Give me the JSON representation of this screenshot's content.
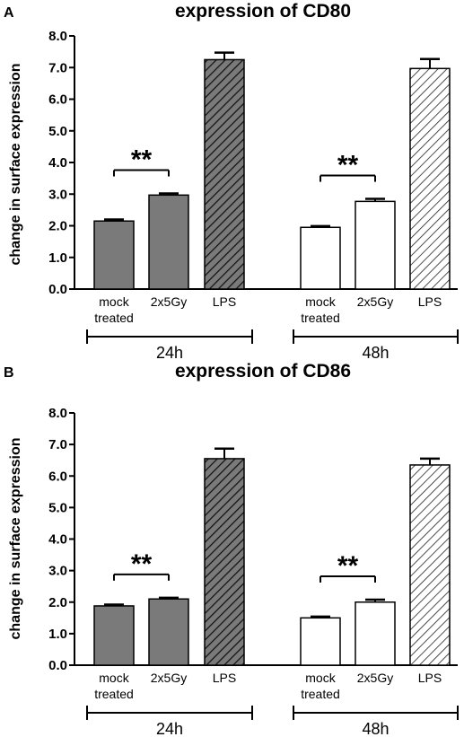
{
  "chart_data": [
    {
      "panel": "A",
      "type": "bar",
      "title": "expression of CD80",
      "ylabel": "change in surface expression",
      "ylim": [
        0,
        8
      ],
      "yticks": [
        "0.0",
        "1.0",
        "2.0",
        "3.0",
        "4.0",
        "5.0",
        "6.0",
        "7.0",
        "8.0"
      ],
      "categories": [
        "mock treated",
        "2x5Gy",
        "LPS",
        "mock treated",
        "2x5Gy",
        "LPS"
      ],
      "category_lines": [
        [
          "mock",
          "treated"
        ],
        [
          "2x5Gy"
        ],
        [
          "LPS"
        ],
        [
          "mock",
          "treated"
        ],
        [
          "2x5Gy"
        ],
        [
          "LPS"
        ]
      ],
      "groups": [
        "24h",
        "48h"
      ],
      "values": [
        2.15,
        2.97,
        7.25,
        1.95,
        2.77,
        6.97
      ],
      "errors": [
        0.05,
        0.05,
        0.22,
        0.04,
        0.08,
        0.3
      ],
      "fills": [
        "gray",
        "gray",
        "gray-hatched",
        "white",
        "white",
        "white-hatched"
      ],
      "significance": [
        {
          "label": "**",
          "between": [
            0,
            1
          ]
        },
        {
          "label": "**",
          "between": [
            3,
            4
          ]
        }
      ],
      "grid": false,
      "legend": "none"
    },
    {
      "panel": "B",
      "type": "bar",
      "title": "expression of CD86",
      "ylabel": "change in surface expression",
      "ylim": [
        0,
        8
      ],
      "yticks": [
        "0.0",
        "1.0",
        "2.0",
        "3.0",
        "4.0",
        "5.0",
        "6.0",
        "7.0",
        "8.0"
      ],
      "categories": [
        "mock treated",
        "2x5Gy",
        "LPS",
        "mock treated",
        "2x5Gy",
        "LPS"
      ],
      "category_lines": [
        [
          "mock",
          "treated"
        ],
        [
          "2x5Gy"
        ],
        [
          "LPS"
        ],
        [
          "mock",
          "treated"
        ],
        [
          "2x5Gy"
        ],
        [
          "LPS"
        ]
      ],
      "groups": [
        "24h",
        "48h"
      ],
      "values": [
        1.88,
        2.1,
        6.55,
        1.5,
        2.0,
        6.35
      ],
      "errors": [
        0.04,
        0.04,
        0.32,
        0.04,
        0.08,
        0.2
      ],
      "fills": [
        "gray",
        "gray",
        "gray-hatched",
        "white",
        "white",
        "white-hatched"
      ],
      "significance": [
        {
          "label": "**",
          "between": [
            0,
            1
          ]
        },
        {
          "label": "**",
          "between": [
            3,
            4
          ]
        }
      ],
      "grid": false,
      "legend": "none"
    }
  ],
  "colors": {
    "bar_gray": "#7a7a7a",
    "bar_white": "#ffffff",
    "stroke": "#000000"
  }
}
